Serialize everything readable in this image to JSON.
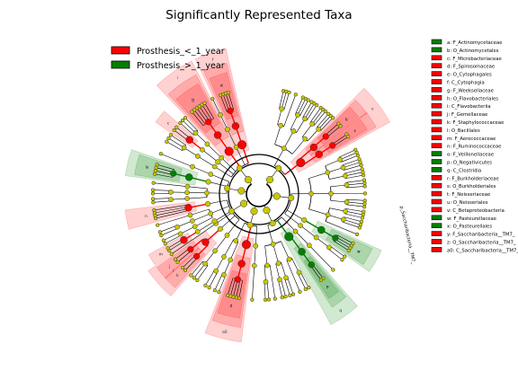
{
  "chart_data": {
    "type": "cladogram",
    "title": "Significantly Represented Taxa",
    "groups": [
      {
        "name": "Prosthesis_<_1_year",
        "color": "#ff0000"
      },
      {
        "name": "Prosthesis_>_1_year",
        "color": "#008000"
      }
    ],
    "taxa": [
      {
        "code": "a",
        "name": "F_Actinomycetaceae",
        "group": 1
      },
      {
        "code": "b",
        "name": "O_Actinomycetales",
        "group": 1
      },
      {
        "code": "c",
        "name": "F_Microbacteriaceae",
        "group": 0
      },
      {
        "code": "d",
        "name": "F_Spirosomaceae",
        "group": 0
      },
      {
        "code": "e",
        "name": "O_Cytophagales",
        "group": 0
      },
      {
        "code": "f",
        "name": "C_Cytophagia",
        "group": 0
      },
      {
        "code": "g",
        "name": "F_Weeksellaceae",
        "group": 0
      },
      {
        "code": "h",
        "name": "O_Flavobacteriales",
        "group": 0
      },
      {
        "code": "i",
        "name": "C_Flavobacteriia",
        "group": 0
      },
      {
        "code": "j",
        "name": "F_Gemellaceae",
        "group": 0
      },
      {
        "code": "k",
        "name": "F_Staphylococcaceae",
        "group": 0
      },
      {
        "code": "l",
        "name": "O_Bacillales",
        "group": 0
      },
      {
        "code": "m",
        "name": "F_Aerococcaceae",
        "group": 0
      },
      {
        "code": "n",
        "name": "F_Ruminococcaceae",
        "group": 0
      },
      {
        "code": "o",
        "name": "F_Veillonellaceae",
        "group": 1
      },
      {
        "code": "p",
        "name": "O_Negativicutes",
        "group": 1
      },
      {
        "code": "q",
        "name": "C_Clostridia",
        "group": 1
      },
      {
        "code": "r",
        "name": "F_Burkholderiaceae",
        "group": 0
      },
      {
        "code": "s",
        "name": "O_Burkholderiales",
        "group": 0
      },
      {
        "code": "t",
        "name": "F_Neisseriaceae",
        "group": 0
      },
      {
        "code": "u",
        "name": "O_Neisseriales",
        "group": 0
      },
      {
        "code": "v",
        "name": "C_Betaproteobacteria",
        "group": 0
      },
      {
        "code": "w",
        "name": "F_Pasteurellaceae",
        "group": 1
      },
      {
        "code": "x",
        "name": "O_Pasteurellales",
        "group": 1
      },
      {
        "code": "y",
        "name": "F_Saccharibacteria__TM7_",
        "group": 0
      },
      {
        "code": "z",
        "name": "O_Saccharibacteria__TM7_",
        "group": 0
      },
      {
        "code": "a0",
        "name": "C_Saccharibacteria__TM7_",
        "group": 0
      }
    ],
    "outer_label": "p_Saccharibacteria__TM7_"
  }
}
